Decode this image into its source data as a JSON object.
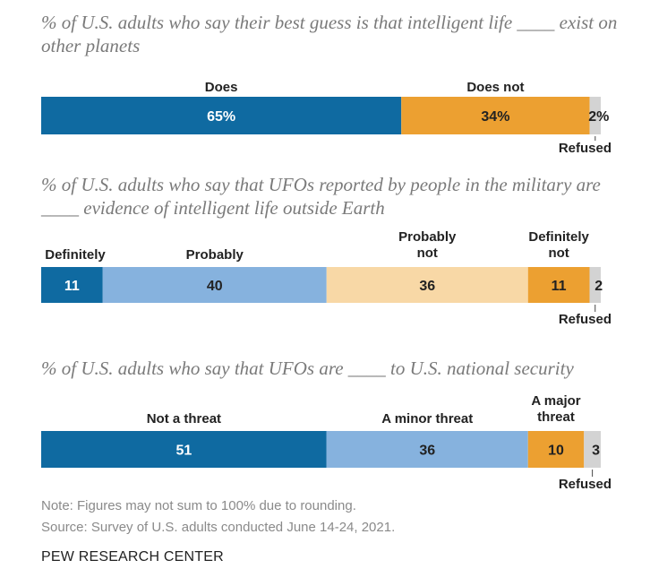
{
  "chart_data": [
    {
      "type": "bar",
      "orientation": "horizontal-stacked",
      "title": "% of U.S. adults who say their best guess is that intelligent life ____ exist on other planets",
      "categories": [
        "Does",
        "Does not",
        "Refused"
      ],
      "values": [
        65,
        34,
        2
      ],
      "value_labels": [
        "65%",
        "34%",
        "2%"
      ],
      "colors": [
        "#0f6aa1",
        "#eca031",
        "#d3d3d3"
      ],
      "label_colors": [
        "#ffffff",
        "#222222",
        "#222222"
      ]
    },
    {
      "type": "bar",
      "orientation": "horizontal-stacked",
      "title": "% of U.S. adults who say that UFOs reported by people in the military are ____ evidence of intelligent life outside Earth",
      "categories": [
        "Definitely",
        "Probably",
        "Probably not",
        "Definitely not",
        "Refused"
      ],
      "values": [
        11,
        40,
        36,
        11,
        2
      ],
      "value_labels": [
        "11",
        "40",
        "36",
        "11",
        "2"
      ],
      "colors": [
        "#0f6aa1",
        "#86b2de",
        "#f8d8a6",
        "#eca031",
        "#d3d3d3"
      ],
      "label_colors": [
        "#ffffff",
        "#222222",
        "#222222",
        "#222222",
        "#222222"
      ]
    },
    {
      "type": "bar",
      "orientation": "horizontal-stacked",
      "title": "% of U.S. adults who say that UFOs are ____ to U.S. national security",
      "categories": [
        "Not a threat",
        "A minor threat",
        "A major threat",
        "Refused"
      ],
      "values": [
        51,
        36,
        10,
        3
      ],
      "value_labels": [
        "51",
        "36",
        "10",
        "3"
      ],
      "colors": [
        "#0f6aa1",
        "#86b2de",
        "#eca031",
        "#d3d3d3"
      ],
      "label_colors": [
        "#ffffff",
        "#222222",
        "#222222",
        "#222222"
      ]
    }
  ],
  "footer": {
    "note": "Note: Figures may not sum to 100% due to rounding.",
    "source": "Source: Survey of U.S. adults conducted June 14-24, 2021.",
    "brand": "PEW RESEARCH CENTER"
  }
}
